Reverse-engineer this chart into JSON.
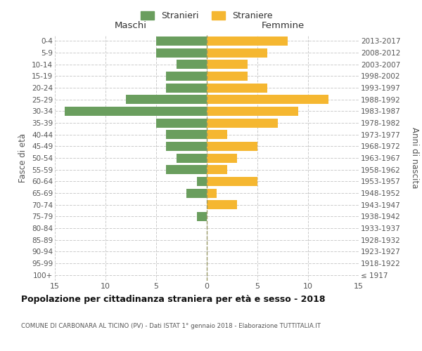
{
  "age_groups": [
    "100+",
    "95-99",
    "90-94",
    "85-89",
    "80-84",
    "75-79",
    "70-74",
    "65-69",
    "60-64",
    "55-59",
    "50-54",
    "45-49",
    "40-44",
    "35-39",
    "30-34",
    "25-29",
    "20-24",
    "15-19",
    "10-14",
    "5-9",
    "0-4"
  ],
  "birth_years": [
    "≤ 1917",
    "1918-1922",
    "1923-1927",
    "1928-1932",
    "1933-1937",
    "1938-1942",
    "1943-1947",
    "1948-1952",
    "1953-1957",
    "1958-1962",
    "1963-1967",
    "1968-1972",
    "1973-1977",
    "1978-1982",
    "1983-1987",
    "1988-1992",
    "1993-1997",
    "1998-2002",
    "2003-2007",
    "2008-2012",
    "2013-2017"
  ],
  "maschi": [
    0,
    0,
    0,
    0,
    0,
    1,
    0,
    2,
    1,
    4,
    3,
    4,
    4,
    5,
    14,
    8,
    4,
    4,
    3,
    5,
    5
  ],
  "femmine": [
    0,
    0,
    0,
    0,
    0,
    0,
    3,
    1,
    5,
    2,
    3,
    5,
    2,
    7,
    9,
    12,
    6,
    4,
    4,
    6,
    8
  ],
  "male_color": "#6a9e5e",
  "female_color": "#f5b731",
  "title": "Popolazione per cittadinanza straniera per età e sesso - 2018",
  "subtitle": "COMUNE DI CARBONARA AL TICINO (PV) - Dati ISTAT 1° gennaio 2018 - Elaborazione TUTTITALIA.IT",
  "xlabel_left": "Maschi",
  "xlabel_right": "Femmine",
  "ylabel_left": "Fasce di età",
  "ylabel_right": "Anni di nascita",
  "legend_male": "Stranieri",
  "legend_female": "Straniere",
  "xlim": 15,
  "background_color": "#ffffff",
  "grid_color": "#cccccc",
  "center_line_color": "#999966"
}
